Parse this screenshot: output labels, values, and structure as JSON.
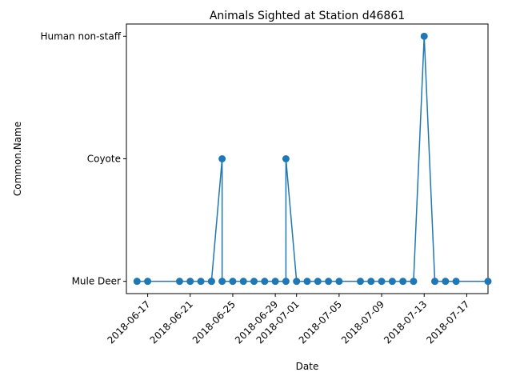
{
  "chart_data": {
    "type": "line",
    "title": "Animals Sighted at Station d46861",
    "xlabel": "Date",
    "ylabel": "Common.Name",
    "y_categories": [
      "Mule Deer",
      "Coyote",
      "Human non-staff"
    ],
    "x_ticks": [
      "2018-06-17",
      "2018-06-21",
      "2018-06-25",
      "2018-06-29",
      "2018-07-01",
      "2018-07-05",
      "2018-07-09",
      "2018-07-13",
      "2018-07-17"
    ],
    "x_range": [
      "2018-06-15T00:00",
      "2018-07-19T00:00"
    ],
    "marker": "circle",
    "line_color": "#1f77b4",
    "grid": false,
    "series": [
      {
        "points": [
          {
            "x": "2018-06-16",
            "y": "Mule Deer"
          },
          {
            "x": "2018-06-17",
            "y": "Mule Deer"
          },
          {
            "x": "2018-06-20",
            "y": "Mule Deer"
          },
          {
            "x": "2018-06-21",
            "y": "Mule Deer"
          },
          {
            "x": "2018-06-22",
            "y": "Mule Deer"
          },
          {
            "x": "2018-06-23",
            "y": "Mule Deer"
          },
          {
            "x": "2018-06-23",
            "y": "Mule Deer"
          },
          {
            "x": "2018-06-24",
            "y": "Coyote"
          },
          {
            "x": "2018-06-24",
            "y": "Mule Deer"
          },
          {
            "x": "2018-06-25",
            "y": "Mule Deer"
          },
          {
            "x": "2018-06-26",
            "y": "Mule Deer"
          },
          {
            "x": "2018-06-27",
            "y": "Mule Deer"
          },
          {
            "x": "2018-06-28",
            "y": "Mule Deer"
          },
          {
            "x": "2018-06-29",
            "y": "Mule Deer"
          },
          {
            "x": "2018-06-30",
            "y": "Mule Deer"
          },
          {
            "x": "2018-06-30",
            "y": "Coyote"
          },
          {
            "x": "2018-07-01",
            "y": "Mule Deer"
          },
          {
            "x": "2018-07-02",
            "y": "Mule Deer"
          },
          {
            "x": "2018-07-03",
            "y": "Mule Deer"
          },
          {
            "x": "2018-07-04",
            "y": "Mule Deer"
          },
          {
            "x": "2018-07-05",
            "y": "Mule Deer"
          },
          {
            "x": "2018-07-07",
            "y": "Mule Deer"
          },
          {
            "x": "2018-07-08",
            "y": "Mule Deer"
          },
          {
            "x": "2018-07-09",
            "y": "Mule Deer"
          },
          {
            "x": "2018-07-10",
            "y": "Mule Deer"
          },
          {
            "x": "2018-07-11",
            "y": "Mule Deer"
          },
          {
            "x": "2018-07-12",
            "y": "Mule Deer"
          },
          {
            "x": "2018-07-13",
            "y": "Human non-staff"
          },
          {
            "x": "2018-07-14",
            "y": "Mule Deer"
          },
          {
            "x": "2018-07-15",
            "y": "Mule Deer"
          },
          {
            "x": "2018-07-16",
            "y": "Mule Deer"
          },
          {
            "x": "2018-07-19",
            "y": "Mule Deer"
          }
        ]
      }
    ]
  }
}
